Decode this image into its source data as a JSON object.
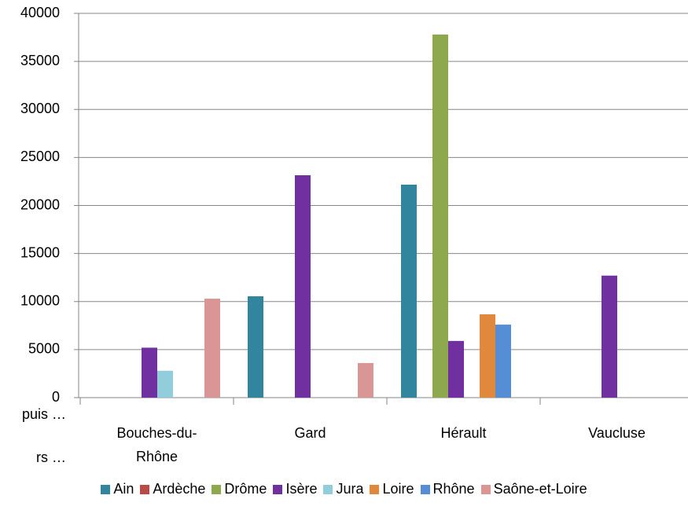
{
  "chart_data": {
    "type": "bar",
    "categories": [
      "Bouches-du-Rhône",
      "Gard",
      "Hérault",
      "Vaucluse"
    ],
    "series": [
      {
        "name": "Ain",
        "color": "#31859c",
        "values": [
          null,
          10550,
          22170,
          null
        ]
      },
      {
        "name": "Ardèche",
        "color": "#b94a48",
        "values": [
          null,
          null,
          null,
          null
        ]
      },
      {
        "name": "Drôme",
        "color": "#8ea84e",
        "values": [
          null,
          null,
          37800,
          null
        ]
      },
      {
        "name": "Isère",
        "color": "#7030a0",
        "values": [
          5200,
          23150,
          5900,
          12700
        ]
      },
      {
        "name": "Jura",
        "color": "#92cddc",
        "values": [
          2800,
          null,
          null,
          null
        ]
      },
      {
        "name": "Loire",
        "color": "#e0883c",
        "values": [
          null,
          null,
          8670,
          null
        ]
      },
      {
        "name": "Rhône",
        "color": "#558ed5",
        "values": [
          null,
          null,
          7600,
          null
        ]
      },
      {
        "name": "Saône-et-Loire",
        "color": "#d99694",
        "values": [
          10300,
          3600,
          null,
          null
        ]
      }
    ],
    "annotations": [
      "puis …",
      "rs …"
    ],
    "ylim": [
      0,
      40000
    ],
    "yticks": [
      0,
      5000,
      10000,
      15000,
      20000,
      25000,
      30000,
      35000,
      40000
    ],
    "grid": true,
    "legend": "bottom"
  }
}
